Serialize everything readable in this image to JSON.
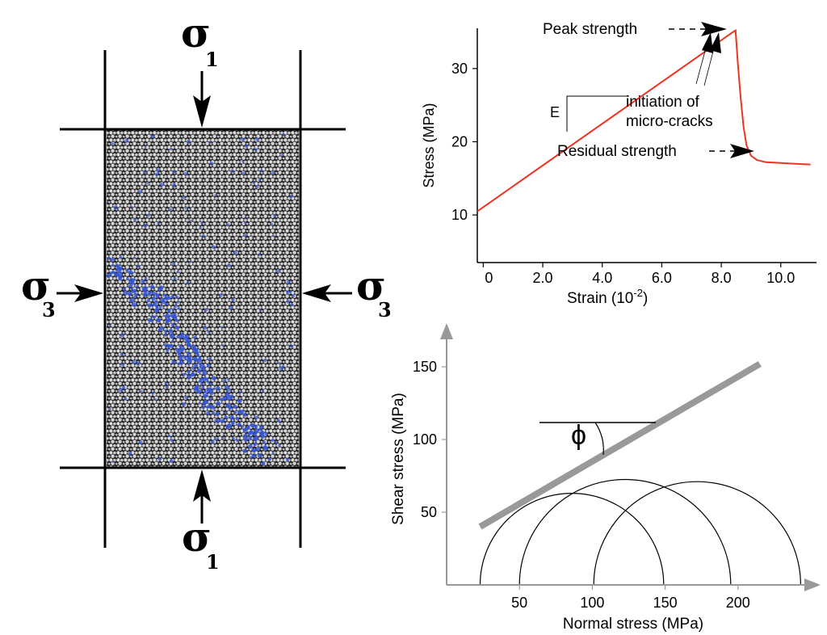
{
  "specimen": {
    "sigma1_top": {
      "symbol": "σ",
      "sub": "1"
    },
    "sigma1_bottom": {
      "symbol": "σ",
      "sub": "1"
    },
    "sigma3_left": {
      "symbol": "σ",
      "sub": "3"
    },
    "sigma3_right": {
      "symbol": "σ",
      "sub": "3"
    },
    "colors": {
      "particles": "#d9d9d9",
      "cracks": "#3355dd",
      "background": "#222222"
    }
  },
  "chart_data": [
    {
      "type": "line",
      "xlabel_main": "Strain (10",
      "xlabel_exp": "-2",
      "xlabel_close": ")",
      "ylabel": "Stress (MPa)",
      "x_ticks": [
        "0",
        "2.0",
        "4.0",
        "6.0",
        "8.0",
        "10.0"
      ],
      "y_ticks": [
        "10",
        "20",
        "30"
      ],
      "xlim": [
        -0.2,
        11.2
      ],
      "ylim": [
        3.5,
        35.5
      ],
      "series": [
        {
          "color": "#ee3322",
          "x": [
            -0.2,
            8.4,
            8.48,
            8.55,
            8.65,
            8.75,
            8.85,
            9.0,
            9.2,
            9.5,
            10.0,
            10.5,
            11.0
          ],
          "y": [
            10.5,
            35.0,
            35.2,
            31.0,
            26.0,
            22.0,
            19.5,
            18.1,
            17.5,
            17.2,
            17.1,
            17.0,
            16.9
          ]
        }
      ],
      "annotations": {
        "peak": "Peak strength",
        "modulus": "E",
        "cracks_line1": "initiation of",
        "cracks_line2": "micro-cracks",
        "residual": "Residual strength"
      }
    },
    {
      "type": "mohr-circles",
      "xlabel": "Normal stress (MPa)",
      "ylabel": "Shear stress (MPa)",
      "x_ticks": [
        "50",
        "100",
        "150",
        "200"
      ],
      "y_ticks": [
        "50",
        "100",
        "150"
      ],
      "xlim": [
        0,
        250
      ],
      "ylim": [
        0,
        170
      ],
      "circles": [
        {
          "sigma3": 23,
          "sigma1": 149
        },
        {
          "sigma3": 50,
          "sigma1": 195
        },
        {
          "sigma3": 101,
          "sigma1": 243
        }
      ],
      "envelope": {
        "x": [
          23,
          215
        ],
        "y": [
          40,
          152
        ],
        "color": "#999999"
      },
      "angle_label": "ϕ"
    }
  ]
}
